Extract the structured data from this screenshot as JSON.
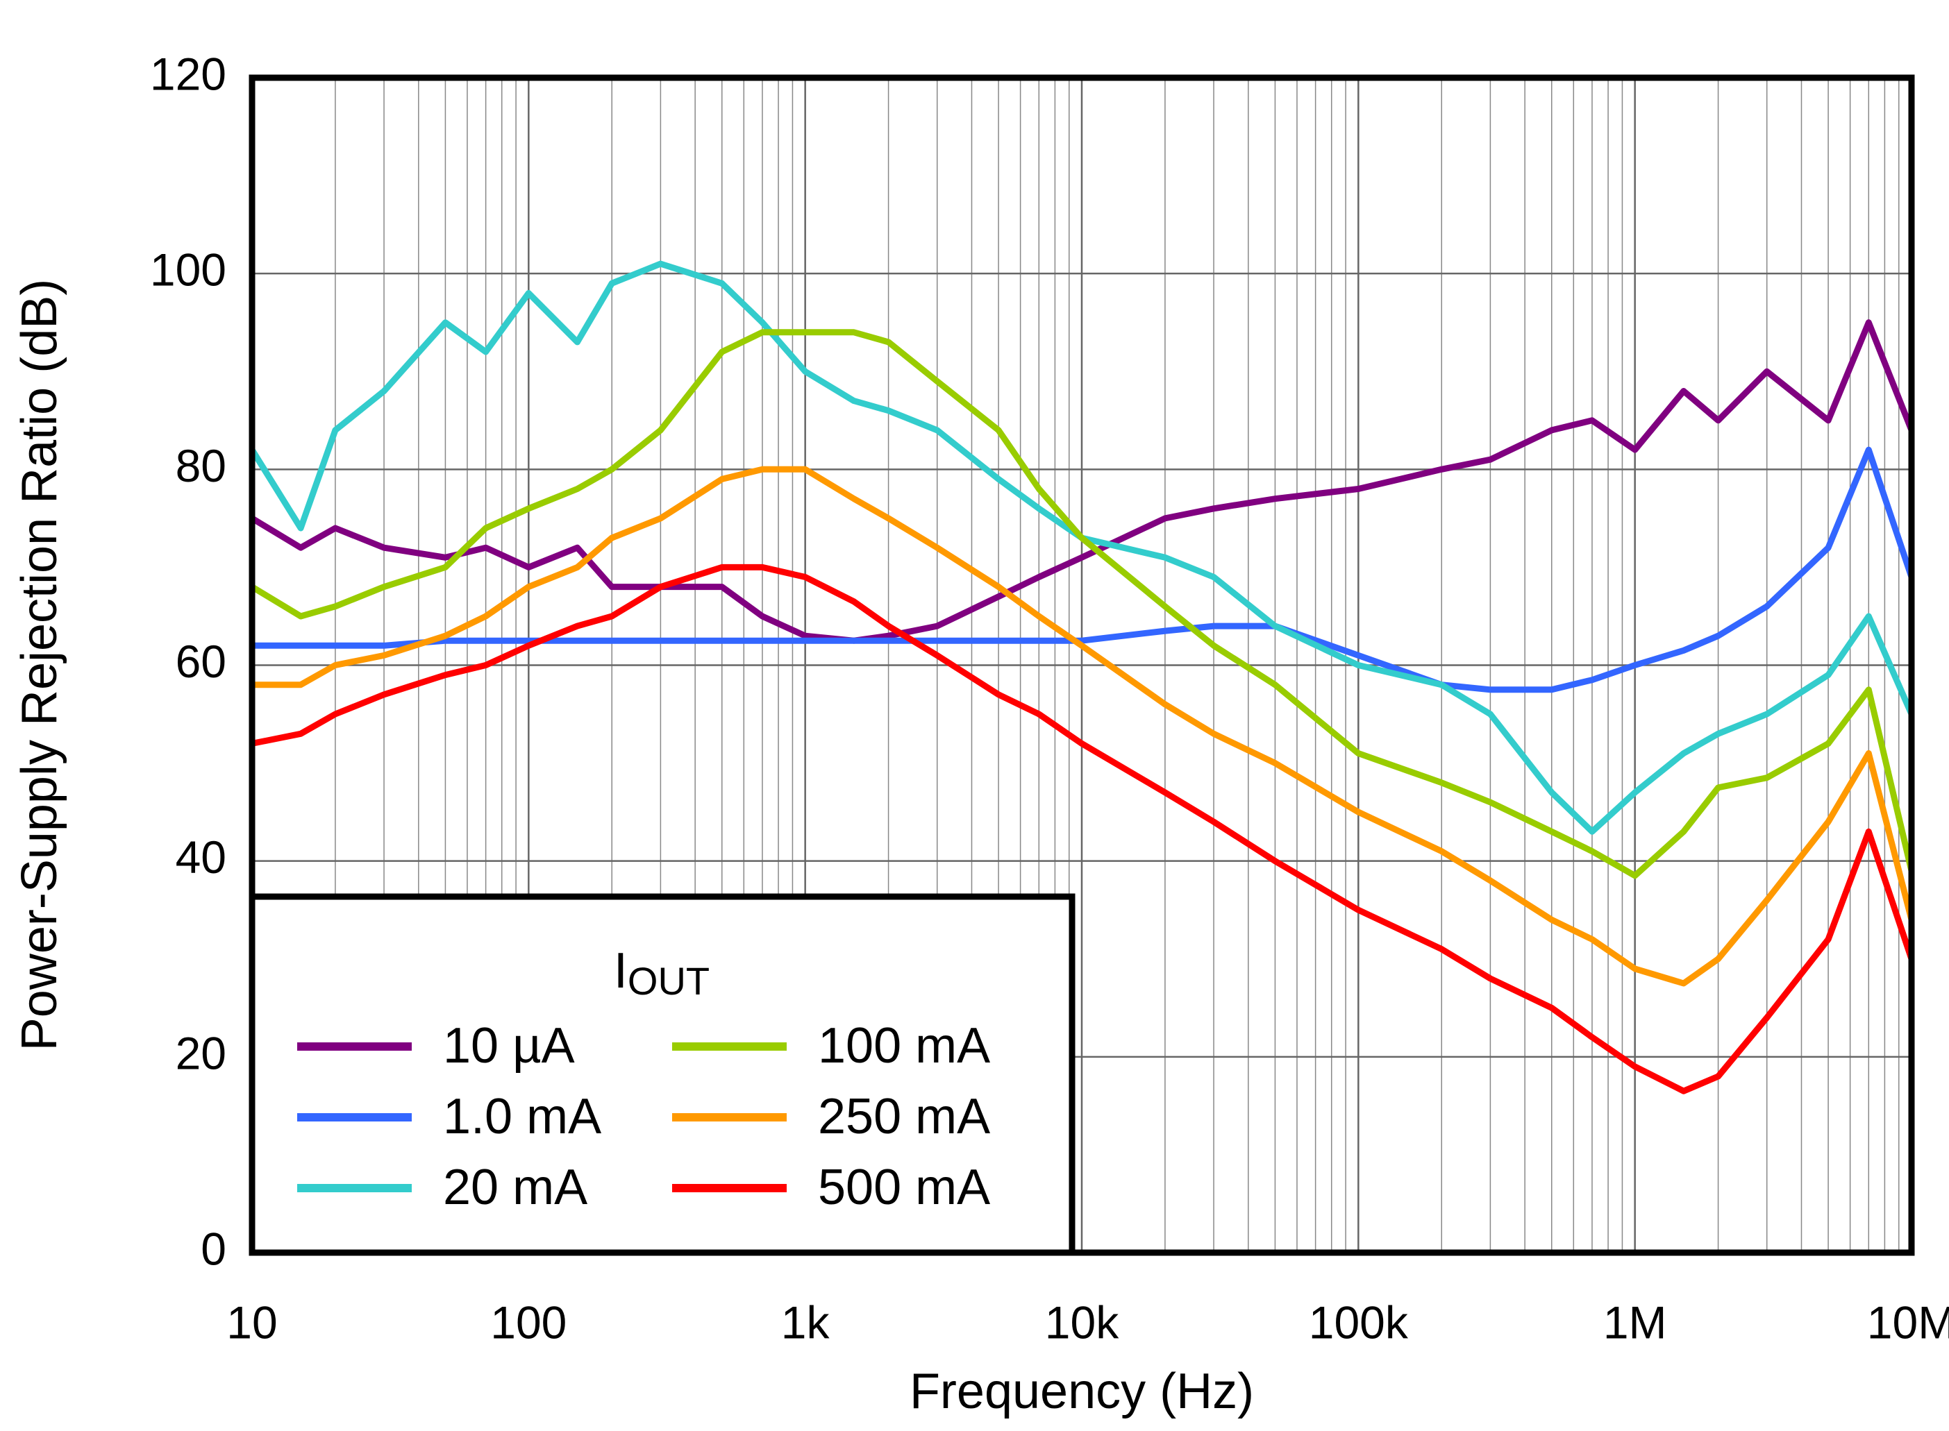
{
  "chart_data": {
    "type": "line",
    "x_label": "Frequency (Hz)",
    "y_label": "Power-Supply Rejection Ratio (dB)",
    "x_log": true,
    "grid": true,
    "minor_grid": true,
    "legend_location": "lower left",
    "legend_title": {
      "main": "I",
      "sub": "OUT"
    },
    "xlim": [
      10,
      10000000
    ],
    "ylim": [
      0,
      120
    ],
    "xticks": [
      10,
      100,
      {
        "value": 1000,
        "label": "1k"
      },
      {
        "value": 10000,
        "label": "10k"
      },
      {
        "value": 100000,
        "label": "100k"
      },
      {
        "value": 1000000,
        "label": "1M"
      },
      {
        "value": 10000000,
        "label": "10M"
      }
    ],
    "yticks": [
      0,
      20,
      40,
      60,
      80,
      100,
      120
    ],
    "x": [
      10,
      15,
      20,
      30,
      50,
      70,
      100,
      150,
      200,
      300,
      500,
      700,
      1000,
      1500,
      2000,
      3000,
      5000,
      7000,
      10000,
      20000,
      30000,
      50000,
      100000,
      200000,
      300000,
      500000,
      700000,
      1000000,
      1500000,
      2000000,
      3000000,
      5000000,
      7000000,
      10000000
    ],
    "series": [
      {
        "name": "10 µA",
        "color": "#800080",
        "values": [
          75,
          72,
          74,
          72,
          71,
          72,
          70,
          72,
          68,
          68,
          68,
          65,
          63,
          62.5,
          63,
          64,
          67,
          69,
          71,
          75,
          76,
          77,
          78,
          80,
          81,
          84,
          85,
          82,
          88,
          85,
          90,
          85,
          95,
          84
        ]
      },
      {
        "name": "1.0 mA",
        "color": "#3366ff",
        "values": [
          62,
          62,
          62,
          62,
          62.5,
          62.5,
          62.5,
          62.5,
          62.5,
          62.5,
          62.5,
          62.5,
          62.5,
          62.5,
          62.5,
          62.5,
          62.5,
          62.5,
          62.5,
          63.5,
          64,
          64,
          61,
          58,
          57.5,
          57.5,
          58.5,
          60,
          61.5,
          63,
          66,
          72,
          82,
          69
        ]
      },
      {
        "name": "20 mA",
        "color": "#33cccc",
        "values": [
          82,
          74,
          84,
          88,
          95,
          92,
          98,
          93,
          99,
          101,
          99,
          95,
          90,
          87,
          86,
          84,
          79,
          76,
          73,
          71,
          69,
          64,
          60,
          58,
          55,
          47,
          43,
          47,
          51,
          53,
          55,
          59,
          65,
          55
        ]
      },
      {
        "name": "100 mA",
        "color": "#99cc00",
        "values": [
          68,
          65,
          66,
          68,
          70,
          74,
          76,
          78,
          80,
          84,
          92,
          94,
          94,
          94,
          93,
          89,
          84,
          78,
          73,
          66,
          62,
          58,
          51,
          48,
          46,
          43,
          41,
          38.5,
          43,
          47.5,
          48.5,
          52,
          57.5,
          39
        ]
      },
      {
        "name": "250 mA",
        "color": "#ff9900",
        "values": [
          58,
          58,
          60,
          61,
          63,
          65,
          68,
          70,
          73,
          75,
          79,
          80,
          80,
          77,
          75,
          72,
          68,
          65,
          62,
          56,
          53,
          50,
          45,
          41,
          38,
          34,
          32,
          29,
          27.5,
          30,
          36,
          44,
          51,
          34
        ]
      },
      {
        "name": "500 mA",
        "color": "#ff0000",
        "values": [
          52,
          53,
          55,
          57,
          59,
          60,
          62,
          64,
          65,
          68,
          70,
          70,
          69,
          66.5,
          64,
          61,
          57,
          55,
          52,
          47,
          44,
          40,
          35,
          31,
          28,
          25,
          22,
          19,
          16.5,
          18,
          24,
          32,
          43,
          30
        ]
      }
    ]
  }
}
